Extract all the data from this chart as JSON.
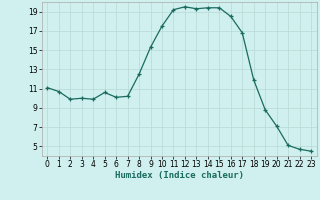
{
  "x": [
    0,
    1,
    2,
    3,
    4,
    5,
    6,
    7,
    8,
    9,
    10,
    11,
    12,
    13,
    14,
    15,
    16,
    17,
    18,
    19,
    20,
    21,
    22,
    23
  ],
  "y": [
    11.1,
    10.7,
    9.9,
    10.0,
    9.9,
    10.6,
    10.1,
    10.2,
    12.5,
    15.3,
    17.5,
    19.2,
    19.5,
    19.3,
    19.4,
    19.4,
    18.5,
    16.8,
    11.9,
    8.8,
    7.1,
    5.1,
    4.7,
    4.5
  ],
  "xlabel": "Humidex (Indice chaleur)",
  "xlim": [
    -0.5,
    23.5
  ],
  "ylim": [
    4,
    20
  ],
  "yticks": [
    5,
    7,
    9,
    11,
    13,
    15,
    17,
    19
  ],
  "xticks": [
    0,
    1,
    2,
    3,
    4,
    5,
    6,
    7,
    8,
    9,
    10,
    11,
    12,
    13,
    14,
    15,
    16,
    17,
    18,
    19,
    20,
    21,
    22,
    23
  ],
  "line_color": "#1a6b5e",
  "marker": "+",
  "bg_color": "#cff0ee",
  "grid_color": "#b8d8d4",
  "label_fontsize": 6.5,
  "tick_fontsize": 5.5
}
